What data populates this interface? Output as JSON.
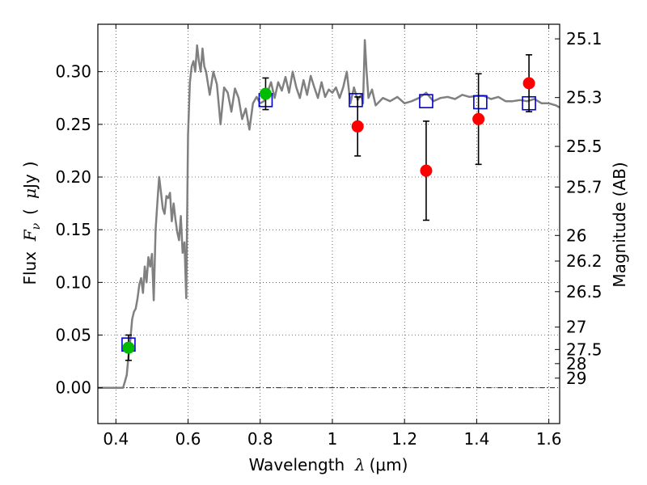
{
  "chart_data": {
    "type": "scatter",
    "xlabel": "Wavelength  λ (μm)",
    "xlabel_parts": {
      "text": "Wavelength  ",
      "symbol": "λ",
      "unit": "(μm)"
    },
    "ylabel": "Flux  F_ν  ( μJy )",
    "ylabel_parts": {
      "text": "Flux  ",
      "symbol": "F",
      "subscript": "ν",
      "open": "(",
      "mu": "μ",
      "unit": "Jy",
      "close": ")"
    },
    "y2label": "Magnitude (AB)",
    "xlim": [
      0.35,
      1.63
    ],
    "ylim": [
      -0.034,
      0.345
    ],
    "grid": true,
    "x_ticks": [
      0.4,
      0.6,
      0.8,
      1.0,
      1.2,
      1.4,
      1.6
    ],
    "x_tick_labels": [
      "0.4",
      "0.6",
      "0.8",
      "1",
      "1.2",
      "1.4",
      "1.6"
    ],
    "y_ticks": [
      0.0,
      0.05,
      0.1,
      0.15,
      0.2,
      0.25,
      0.3
    ],
    "y_tick_labels": [
      "0.00",
      "0.05",
      "0.10",
      "0.15",
      "0.20",
      "0.25",
      "0.30"
    ],
    "mag_ticks": [
      25.1,
      25.3,
      25.5,
      25.7,
      26,
      26.2,
      26.5,
      27,
      27.5,
      28,
      29
    ],
    "mag_tick_labels": [
      "25.1",
      "25.3",
      "25.5",
      "25.7",
      "26",
      "26.2",
      "26.5",
      "27",
      "27.5",
      "28",
      "29"
    ],
    "series": [
      {
        "name": "model SED",
        "kind": "line",
        "color": "#808080",
        "x": [
          0.35,
          0.42,
          0.425,
          0.43,
          0.435,
          0.44,
          0.445,
          0.45,
          0.455,
          0.46,
          0.465,
          0.47,
          0.475,
          0.48,
          0.485,
          0.49,
          0.495,
          0.5,
          0.505,
          0.51,
          0.515,
          0.52,
          0.525,
          0.53,
          0.535,
          0.54,
          0.545,
          0.55,
          0.555,
          0.56,
          0.565,
          0.57,
          0.575,
          0.58,
          0.585,
          0.59,
          0.595,
          0.6,
          0.605,
          0.61,
          0.615,
          0.62,
          0.625,
          0.63,
          0.635,
          0.64,
          0.645,
          0.65,
          0.66,
          0.67,
          0.68,
          0.69,
          0.7,
          0.71,
          0.72,
          0.73,
          0.74,
          0.75,
          0.76,
          0.77,
          0.78,
          0.79,
          0.8,
          0.81,
          0.82,
          0.83,
          0.84,
          0.85,
          0.86,
          0.87,
          0.88,
          0.89,
          0.9,
          0.91,
          0.92,
          0.93,
          0.94,
          0.95,
          0.96,
          0.97,
          0.98,
          0.99,
          1.0,
          1.01,
          1.02,
          1.03,
          1.04,
          1.05,
          1.06,
          1.07,
          1.08,
          1.085,
          1.09,
          1.095,
          1.1,
          1.11,
          1.12,
          1.14,
          1.16,
          1.18,
          1.2,
          1.22,
          1.24,
          1.26,
          1.28,
          1.3,
          1.32,
          1.34,
          1.36,
          1.38,
          1.4,
          1.42,
          1.44,
          1.46,
          1.48,
          1.5,
          1.52,
          1.54,
          1.56,
          1.58,
          1.6,
          1.62,
          1.63
        ],
        "y": [
          0.0,
          0.0,
          0.006,
          0.012,
          0.03,
          0.045,
          0.065,
          0.072,
          0.075,
          0.085,
          0.098,
          0.104,
          0.09,
          0.115,
          0.1,
          0.124,
          0.115,
          0.127,
          0.083,
          0.15,
          0.176,
          0.2,
          0.185,
          0.17,
          0.165,
          0.182,
          0.18,
          0.185,
          0.158,
          0.175,
          0.16,
          0.148,
          0.14,
          0.163,
          0.128,
          0.138,
          0.085,
          0.24,
          0.29,
          0.305,
          0.31,
          0.3,
          0.325,
          0.31,
          0.3,
          0.322,
          0.305,
          0.3,
          0.278,
          0.3,
          0.288,
          0.25,
          0.285,
          0.28,
          0.262,
          0.284,
          0.275,
          0.255,
          0.265,
          0.245,
          0.27,
          0.276,
          0.27,
          0.272,
          0.28,
          0.29,
          0.275,
          0.29,
          0.282,
          0.295,
          0.28,
          0.3,
          0.285,
          0.275,
          0.292,
          0.278,
          0.296,
          0.285,
          0.275,
          0.29,
          0.276,
          0.283,
          0.28,
          0.285,
          0.275,
          0.285,
          0.3,
          0.27,
          0.285,
          0.273,
          0.278,
          0.27,
          0.33,
          0.3,
          0.275,
          0.283,
          0.268,
          0.275,
          0.272,
          0.276,
          0.27,
          0.272,
          0.275,
          0.28,
          0.272,
          0.275,
          0.276,
          0.274,
          0.278,
          0.276,
          0.277,
          0.277,
          0.274,
          0.276,
          0.272,
          0.272,
          0.273,
          0.272,
          0.274,
          0.27,
          0.27,
          0.268,
          0.266
        ]
      },
      {
        "name": "model band flux",
        "kind": "open-square",
        "color": "#0000cc",
        "x": [
          0.435,
          0.815,
          1.065,
          1.26,
          1.41,
          1.545
        ],
        "y": [
          0.041,
          0.273,
          0.273,
          0.272,
          0.271,
          0.27
        ]
      },
      {
        "name": "observed (green)",
        "kind": "point",
        "color": "#00bb00",
        "x": [
          0.435,
          0.815
        ],
        "y": [
          0.038,
          0.279
        ],
        "err": [
          0.012,
          0.015
        ]
      },
      {
        "name": "observed (red)",
        "kind": "point",
        "color": "#ff0000",
        "x": [
          1.07,
          1.26,
          1.405,
          1.545
        ],
        "y": [
          0.248,
          0.206,
          0.255,
          0.289
        ],
        "err": [
          0.028,
          0.047,
          0.043,
          0.027
        ]
      }
    ],
    "zero_line": {
      "y": 0.0,
      "style": "dash-dot",
      "color": "#000000"
    }
  }
}
